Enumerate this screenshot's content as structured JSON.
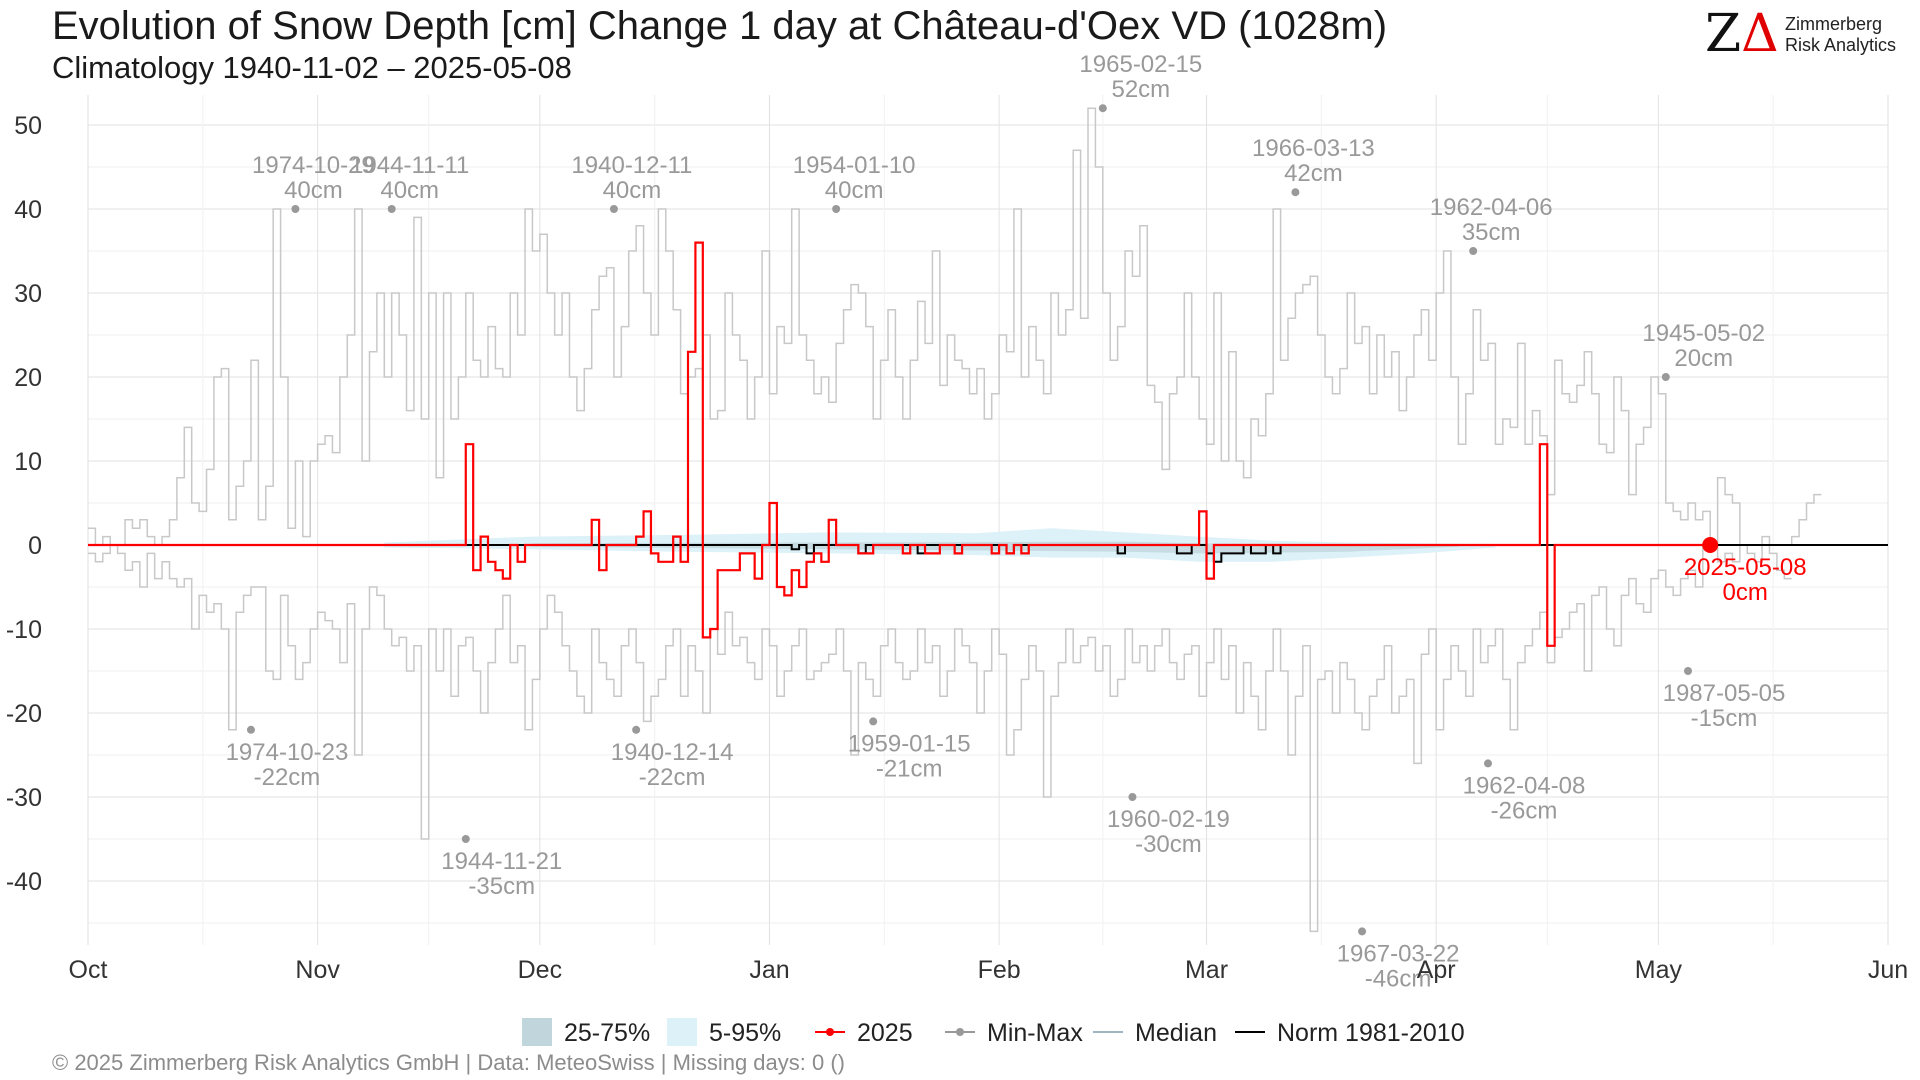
{
  "header": {
    "title": "Evolution of Snow Depth [cm] Change 1 day at Château-d'Oex  VD (1028m)",
    "subtitle": "Climatology 1940-11-02 – 2025-05-08"
  },
  "logo": {
    "line1": "Zimmerberg",
    "line2": "Risk Analytics"
  },
  "footer": {
    "text": "©  2025 Zimmerberg Risk Analytics GmbH | Data: MeteoSwiss | Missing days: 0 ()"
  },
  "colors": {
    "current": "#ff0000",
    "minmax": "#c8c8c8",
    "dots": "#999999",
    "norm": "#000000",
    "band_inner": "#c0d6dc",
    "band_outer": "#dcf1f8",
    "median": "#9fb6c0"
  },
  "chart_data": {
    "type": "line",
    "ylim": [
      -48,
      53
    ],
    "yticks": [
      50,
      40,
      30,
      20,
      10,
      0,
      -10,
      -20,
      -30,
      -40
    ],
    "xlim": [
      0,
      243
    ],
    "month_ticks": [
      {
        "label": "Oct",
        "day": 0
      },
      {
        "label": "Nov",
        "day": 31
      },
      {
        "label": "Dec",
        "day": 61
      },
      {
        "label": "Jan",
        "day": 92
      },
      {
        "label": "Feb",
        "day": 123
      },
      {
        "label": "Mar",
        "day": 151
      },
      {
        "label": "Apr",
        "day": 182
      },
      {
        "label": "May",
        "day": 212
      },
      {
        "label": "Jun",
        "day": 243
      }
    ],
    "legend": [
      {
        "label": "25-75%",
        "kind": "band_inner"
      },
      {
        "label": "5-95%",
        "kind": "band_outer"
      },
      {
        "label": "2025",
        "kind": "current"
      },
      {
        "label": "Min-Max",
        "kind": "minmax"
      },
      {
        "label": "Median",
        "kind": "median"
      },
      {
        "label": "Norm 1981-2010",
        "kind": "norm"
      }
    ],
    "max_annotations": [
      {
        "date": "1974-10-29",
        "value": "40cm",
        "day": 28,
        "y": 40
      },
      {
        "date": "1944-11-11",
        "value": "40cm",
        "day": 41,
        "y": 40
      },
      {
        "date": "1940-12-11",
        "value": "40cm",
        "day": 71,
        "y": 40
      },
      {
        "date": "1954-01-10",
        "value": "40cm",
        "day": 101,
        "y": 40
      },
      {
        "date": "1965-02-15",
        "value": "52cm",
        "day": 137,
        "y": 52
      },
      {
        "date": "1966-03-13",
        "value": "42cm",
        "day": 163,
        "y": 42
      },
      {
        "date": "1962-04-06",
        "value": "35cm",
        "day": 187,
        "y": 35
      },
      {
        "date": "1945-05-02",
        "value": "20cm",
        "day": 213,
        "y": 20
      }
    ],
    "min_annotations": [
      {
        "date": "1974-10-23",
        "value": "-22cm",
        "day": 22,
        "y": -22
      },
      {
        "date": "1944-11-21",
        "value": "-35cm",
        "day": 51,
        "y": -35
      },
      {
        "date": "1940-12-14",
        "value": "-22cm",
        "day": 74,
        "y": -22
      },
      {
        "date": "1959-01-15",
        "value": "-21cm",
        "day": 106,
        "y": -21
      },
      {
        "date": "1960-02-19",
        "value": "-30cm",
        "day": 141,
        "y": -30
      },
      {
        "date": "1967-03-22",
        "value": "-46cm",
        "day": 172,
        "y": -46
      },
      {
        "date": "1962-04-08",
        "value": "-26cm",
        "day": 189,
        "y": -26
      },
      {
        "date": "1987-05-05",
        "value": "-15cm",
        "day": 216,
        "y": -15
      }
    ],
    "current_point": {
      "date": "2025-05-08",
      "value": "0cm",
      "day": 219,
      "y": 0
    },
    "max_series": [
      2,
      0,
      1,
      0,
      0,
      3,
      2,
      3,
      1,
      0,
      1,
      3,
      8,
      14,
      5,
      4,
      9,
      20,
      21,
      3,
      7,
      10,
      22,
      3,
      7,
      40,
      20,
      2,
      10,
      1,
      10,
      12,
      13,
      11,
      20,
      25,
      40,
      10,
      23,
      30,
      20,
      30,
      25,
      16,
      39,
      15,
      30,
      8,
      30,
      15,
      20,
      30,
      22,
      20,
      26,
      21,
      20,
      30,
      25,
      40,
      35,
      37,
      30,
      25,
      30,
      20,
      16,
      21,
      28,
      32,
      33,
      20,
      26,
      35,
      38,
      30,
      25,
      40,
      35,
      28,
      18,
      20,
      21,
      25,
      15,
      16,
      30,
      25,
      22,
      15,
      20,
      35,
      18,
      26,
      24,
      40,
      25,
      22,
      18,
      20,
      17,
      24,
      28,
      31,
      30,
      26,
      15,
      22,
      28,
      20,
      15,
      22,
      29,
      24,
      35,
      19,
      25,
      22,
      21,
      18,
      21,
      15,
      18,
      25,
      23,
      40,
      20,
      26,
      22,
      18,
      30,
      25,
      28,
      47,
      27,
      52,
      45,
      30,
      22,
      26,
      35,
      32,
      38,
      19,
      17,
      9,
      18,
      20,
      30,
      20,
      15,
      12,
      30,
      10,
      23,
      10,
      8,
      15,
      13,
      18,
      40,
      22,
      27,
      30,
      31,
      32,
      25,
      20,
      18,
      21,
      30,
      24,
      26,
      18,
      25,
      20,
      23,
      16,
      20,
      25,
      28,
      22,
      30,
      35,
      20,
      12,
      18,
      28,
      22,
      24,
      12,
      15,
      14,
      24,
      12,
      16,
      13,
      6,
      22,
      18,
      17,
      19,
      23,
      18,
      12,
      11,
      20,
      16,
      6,
      12,
      14,
      20,
      18,
      5,
      4,
      3,
      5,
      3,
      4,
      0,
      8,
      6,
      5,
      0,
      0,
      0,
      1,
      0,
      0,
      0,
      1,
      3,
      5,
      6
    ],
    "min_series": [
      -1,
      -2,
      -1,
      0,
      -1,
      -3,
      -2,
      -5,
      -1,
      -4,
      -2,
      -4,
      -5,
      -4,
      -10,
      -6,
      -8,
      -7,
      -10,
      -22,
      -8,
      -6,
      -5,
      -5,
      -15,
      -16,
      -6,
      -12,
      -16,
      -14,
      -10,
      -8,
      -9,
      -10,
      -14,
      -7,
      -25,
      -10,
      -5,
      -6,
      -10,
      -12,
      -11,
      -15,
      -12,
      -35,
      -10,
      -15,
      -10,
      -18,
      -12,
      -11,
      -15,
      -20,
      -14,
      -10,
      -6,
      -14,
      -12,
      -22,
      -16,
      -10,
      -6,
      -8,
      -12,
      -15,
      -18,
      -20,
      -10,
      -14,
      -16,
      -18,
      -12,
      -10,
      -14,
      -21,
      -18,
      -16,
      -12,
      -10,
      -18,
      -12,
      -15,
      -20,
      -10,
      -13,
      -8,
      -12,
      -11,
      -14,
      -16,
      -10,
      -12,
      -18,
      -15,
      -12,
      -10,
      -16,
      -15,
      -14,
      -13,
      -10,
      -15,
      -25,
      -14,
      -16,
      -18,
      -12,
      -10,
      -14,
      -16,
      -15,
      -10,
      -14,
      -12,
      -18,
      -15,
      -10,
      -12,
      -14,
      -20,
      -15,
      -10,
      -13,
      -25,
      -22,
      -16,
      -12,
      -15,
      -30,
      -18,
      -14,
      -10,
      -14,
      -12,
      -11,
      -15,
      -12,
      -18,
      -16,
      -10,
      -14,
      -12,
      -15,
      -12,
      -10,
      -14,
      -16,
      -13,
      -12,
      -18,
      -14,
      -10,
      -16,
      -12,
      -20,
      -14,
      -18,
      -22,
      -15,
      -10,
      -15,
      -25,
      -18,
      -12,
      -46,
      -16,
      -15,
      -20,
      -14,
      -16,
      -20,
      -22,
      -18,
      -16,
      -12,
      -20,
      -18,
      -16,
      -26,
      -13,
      -10,
      -22,
      -16,
      -12,
      -15,
      -18,
      -10,
      -14,
      -12,
      -10,
      -16,
      -22,
      -14,
      -12,
      -10,
      -8,
      -14,
      -11,
      -10,
      -8,
      -7,
      -15,
      -6,
      -5,
      -10,
      -12,
      -6,
      -4,
      -7,
      -8,
      -4,
      -3,
      -5,
      -6,
      -4,
      -3,
      -5,
      0,
      0,
      -2,
      -1,
      -2,
      0,
      -1,
      -2,
      0,
      -1,
      -3,
      -4
    ],
    "current_series": [
      {
        "day": 0,
        "y": 0
      },
      {
        "day": 51,
        "y": 0
      },
      {
        "day": 51,
        "y": 12
      },
      {
        "day": 52,
        "y": -3
      },
      {
        "day": 53,
        "y": 1
      },
      {
        "day": 54,
        "y": -2
      },
      {
        "day": 55,
        "y": -3
      },
      {
        "day": 56,
        "y": -4
      },
      {
        "day": 57,
        "y": 0
      },
      {
        "day": 58,
        "y": -2
      },
      {
        "day": 59,
        "y": 0
      },
      {
        "day": 67,
        "y": 0
      },
      {
        "day": 68,
        "y": 3
      },
      {
        "day": 69,
        "y": -3
      },
      {
        "day": 70,
        "y": 0
      },
      {
        "day": 74,
        "y": 1
      },
      {
        "day": 75,
        "y": 4
      },
      {
        "day": 76,
        "y": -1
      },
      {
        "day": 77,
        "y": -2
      },
      {
        "day": 79,
        "y": 1
      },
      {
        "day": 80,
        "y": -2
      },
      {
        "day": 81,
        "y": 23
      },
      {
        "day": 82,
        "y": 36
      },
      {
        "day": 83,
        "y": -11
      },
      {
        "day": 84,
        "y": -10
      },
      {
        "day": 85,
        "y": -3
      },
      {
        "day": 88,
        "y": -1
      },
      {
        "day": 90,
        "y": -4
      },
      {
        "day": 91,
        "y": 0
      },
      {
        "day": 92,
        "y": 5
      },
      {
        "day": 93,
        "y": -5
      },
      {
        "day": 94,
        "y": -6
      },
      {
        "day": 95,
        "y": -3
      },
      {
        "day": 96,
        "y": -5
      },
      {
        "day": 97,
        "y": -2
      },
      {
        "day": 98,
        "y": -1
      },
      {
        "day": 99,
        "y": -2
      },
      {
        "day": 100,
        "y": 3
      },
      {
        "day": 101,
        "y": 0
      },
      {
        "day": 104,
        "y": -1
      },
      {
        "day": 106,
        "y": 0
      },
      {
        "day": 110,
        "y": -1
      },
      {
        "day": 111,
        "y": 0
      },
      {
        "day": 113,
        "y": -1
      },
      {
        "day": 114,
        "y": -1
      },
      {
        "day": 115,
        "y": 0
      },
      {
        "day": 117,
        "y": -1
      },
      {
        "day": 118,
        "y": 0
      },
      {
        "day": 122,
        "y": -1
      },
      {
        "day": 123,
        "y": 0
      },
      {
        "day": 124,
        "y": -1
      },
      {
        "day": 125,
        "y": 0
      },
      {
        "day": 126,
        "y": -1
      },
      {
        "day": 127,
        "y": 0
      },
      {
        "day": 150,
        "y": 0
      },
      {
        "day": 150,
        "y": 4
      },
      {
        "day": 151,
        "y": -4
      },
      {
        "day": 152,
        "y": 0
      },
      {
        "day": 196,
        "y": 0
      },
      {
        "day": 196,
        "y": 12
      },
      {
        "day": 197,
        "y": -12
      },
      {
        "day": 198,
        "y": 0
      },
      {
        "day": 219,
        "y": 0
      }
    ],
    "norm_series": [
      {
        "day": 0,
        "y": 0
      },
      {
        "day": 50,
        "y": 0
      },
      {
        "day": 95,
        "y": 0
      },
      {
        "day": 95,
        "y": -0.5
      },
      {
        "day": 96,
        "y": 0
      },
      {
        "day": 97,
        "y": -1
      },
      {
        "day": 98,
        "y": 0
      },
      {
        "day": 104,
        "y": -1
      },
      {
        "day": 105,
        "y": 0
      },
      {
        "day": 112,
        "y": -1
      },
      {
        "day": 113,
        "y": 0
      },
      {
        "day": 124,
        "y": -1
      },
      {
        "day": 125,
        "y": 0
      },
      {
        "day": 139,
        "y": -1
      },
      {
        "day": 140,
        "y": 0
      },
      {
        "day": 147,
        "y": -1
      },
      {
        "day": 149,
        "y": 0
      },
      {
        "day": 151,
        "y": -1
      },
      {
        "day": 152,
        "y": -2
      },
      {
        "day": 153,
        "y": -1
      },
      {
        "day": 155,
        "y": -1
      },
      {
        "day": 156,
        "y": 0
      },
      {
        "day": 157,
        "y": -1
      },
      {
        "day": 159,
        "y": 0
      },
      {
        "day": 160,
        "y": -1
      },
      {
        "day": 161,
        "y": 0
      },
      {
        "day": 243,
        "y": 0
      }
    ],
    "band_outer": {
      "days": [
        40,
        60,
        80,
        100,
        120,
        130,
        140,
        150,
        160,
        170,
        180,
        190
      ],
      "upper": [
        0.3,
        1,
        1.2,
        1.5,
        1.4,
        2,
        1.5,
        1,
        0.5,
        0.3,
        0.2,
        0.1
      ],
      "lower": [
        -0.3,
        -0.5,
        -0.8,
        -1,
        -1.2,
        -1.5,
        -1.5,
        -2,
        -2,
        -1.5,
        -1,
        -0.3
      ]
    },
    "band_inner": {
      "days": [
        60,
        100,
        140,
        150,
        170,
        185
      ],
      "upper": [
        0.2,
        0.3,
        0.4,
        0.2,
        0.1,
        0
      ],
      "lower": [
        -0.2,
        -0.5,
        -0.8,
        -1,
        -0.8,
        -0.2
      ]
    }
  }
}
